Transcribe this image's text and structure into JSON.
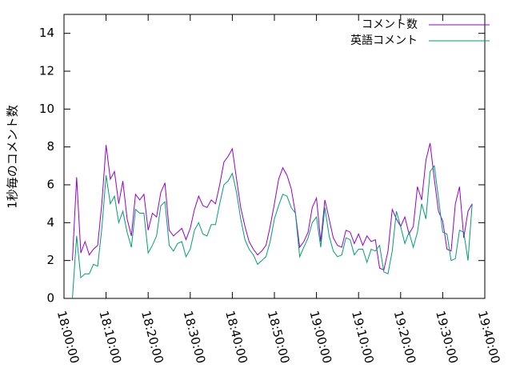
{
  "chart_data": {
    "type": "line",
    "y_label": "1秒毎のコメント数",
    "x": [
      "18:02:00",
      "18:03:00",
      "18:04:00",
      "18:05:00",
      "18:06:00",
      "18:07:00",
      "18:08:00",
      "18:09:00",
      "18:10:00",
      "18:11:00",
      "18:12:00",
      "18:13:00",
      "18:14:00",
      "18:15:00",
      "18:16:00",
      "18:17:00",
      "18:18:00",
      "18:19:00",
      "18:20:00",
      "18:21:00",
      "18:22:00",
      "18:23:00",
      "18:24:00",
      "18:25:00",
      "18:26:00",
      "18:27:00",
      "18:28:00",
      "18:29:00",
      "18:30:00",
      "18:31:00",
      "18:32:00",
      "18:33:00",
      "18:34:00",
      "18:35:00",
      "18:36:00",
      "18:37:00",
      "18:38:00",
      "18:39:00",
      "18:40:00",
      "18:41:00",
      "18:42:00",
      "18:43:00",
      "18:44:00",
      "18:45:00",
      "18:46:00",
      "18:47:00",
      "18:48:00",
      "18:49:00",
      "18:50:00",
      "18:51:00",
      "18:52:00",
      "18:53:00",
      "18:54:00",
      "18:55:00",
      "18:56:00",
      "18:57:00",
      "18:58:00",
      "18:59:00",
      "19:00:00",
      "19:01:00",
      "19:02:00",
      "19:03:00",
      "19:04:00",
      "19:05:00",
      "19:06:00",
      "19:07:00",
      "19:08:00",
      "19:09:00",
      "19:10:00",
      "19:11:00",
      "19:12:00",
      "19:13:00",
      "19:14:00",
      "19:15:00",
      "19:16:00",
      "19:17:00",
      "19:18:00",
      "19:19:00",
      "19:20:00",
      "19:21:00",
      "19:22:00",
      "19:23:00",
      "19:24:00",
      "19:25:00",
      "19:26:00",
      "19:27:00",
      "19:28:00",
      "19:29:00",
      "19:30:00",
      "19:31:00",
      "19:32:00",
      "19:33:00",
      "19:34:00",
      "19:35:00",
      "19:36:00",
      "19:37:00"
    ],
    "series": [
      {
        "name": "コメント数",
        "color": "#9400d3",
        "values": [
          2.0,
          6.4,
          2.4,
          3.0,
          2.3,
          2.6,
          2.8,
          5.0,
          8.1,
          6.3,
          6.7,
          5.0,
          6.2,
          4.2,
          3.3,
          5.5,
          5.2,
          5.5,
          3.6,
          4.5,
          4.3,
          5.6,
          6.1,
          3.6,
          3.3,
          3.5,
          3.7,
          3.1,
          3.7,
          4.7,
          5.4,
          4.9,
          4.8,
          5.2,
          5.0,
          6.0,
          7.2,
          7.5,
          7.9,
          6.3,
          4.8,
          3.8,
          3.0,
          2.6,
          2.3,
          2.5,
          2.8,
          3.8,
          5.0,
          6.3,
          6.9,
          6.5,
          5.8,
          4.5,
          2.7,
          3.0,
          3.5,
          4.8,
          5.3,
          3.0,
          5.2,
          4.2,
          3.2,
          2.8,
          2.7,
          3.6,
          3.5,
          2.9,
          3.4,
          2.8,
          3.3,
          3.0,
          3.1,
          1.6,
          1.5,
          2.5,
          4.7,
          4.2,
          3.8,
          4.3,
          3.4,
          3.8,
          5.9,
          5.2,
          7.3,
          8.2,
          6.3,
          4.6,
          4.1,
          2.6,
          2.5,
          5.0,
          5.9,
          3.2,
          4.6,
          5.0
        ]
      },
      {
        "name": "英語コメント",
        "color": "#009e73",
        "values": [
          0.0,
          3.3,
          1.1,
          1.3,
          1.3,
          1.8,
          1.7,
          3.7,
          6.5,
          5.0,
          5.4,
          4.0,
          4.6,
          3.5,
          2.7,
          4.7,
          4.5,
          4.5,
          2.4,
          2.8,
          3.3,
          4.9,
          5.1,
          2.8,
          2.5,
          2.9,
          3.0,
          2.2,
          2.6,
          3.6,
          4.0,
          3.4,
          3.3,
          3.9,
          3.9,
          5.0,
          6.0,
          6.2,
          6.6,
          5.6,
          4.2,
          3.1,
          2.6,
          2.3,
          1.8,
          2.0,
          2.2,
          3.0,
          4.2,
          4.9,
          5.5,
          5.4,
          4.8,
          4.5,
          2.2,
          2.7,
          3.2,
          4.0,
          4.3,
          2.7,
          4.8,
          3.3,
          2.5,
          2.2,
          2.3,
          3.2,
          3.1,
          2.3,
          2.6,
          2.6,
          1.9,
          2.6,
          2.5,
          2.8,
          1.4,
          1.3,
          2.5,
          4.6,
          3.8,
          2.9,
          3.5,
          2.7,
          3.5,
          5.0,
          4.2,
          6.7,
          7.0,
          5.3,
          3.5,
          3.4,
          2.0,
          2.1,
          3.6,
          3.5,
          2.0,
          5.0
        ]
      }
    ],
    "xlim": [
      "18:00:00",
      "19:40:00"
    ],
    "xticks": [
      "18:00:00",
      "18:10:00",
      "18:20:00",
      "18:30:00",
      "18:40:00",
      "18:50:00",
      "19:00:00",
      "19:10:00",
      "19:20:00",
      "19:30:00",
      "19:40:00"
    ],
    "ylim": [
      0,
      15
    ],
    "yticks": [
      0,
      2,
      4,
      6,
      8,
      10,
      12,
      14
    ],
    "legend": "top-right"
  }
}
